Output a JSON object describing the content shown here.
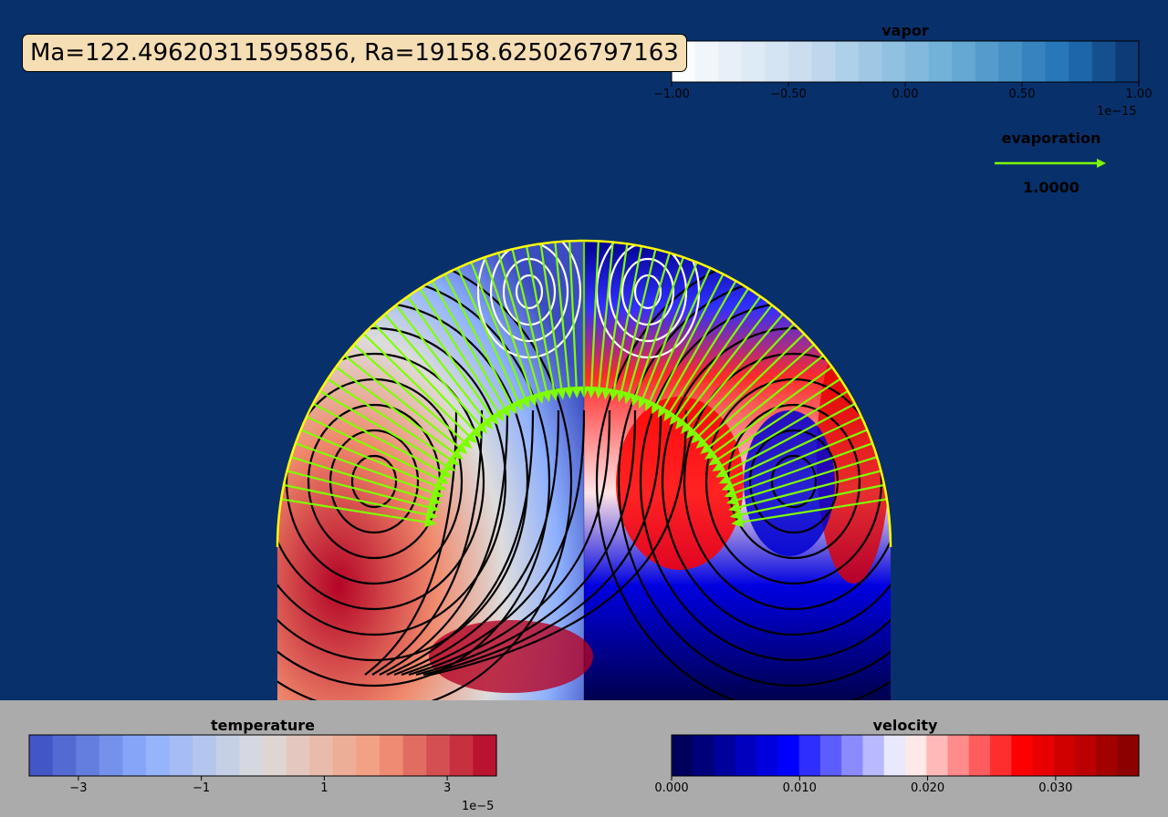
{
  "chart_data": {
    "type": "contour",
    "title": "Ma=122.49620311595856, Ra=19158.625026797163",
    "field_left": "temperature",
    "field_right": "velocity",
    "streamlines": true,
    "evaporation_arrows": true,
    "colorbars": {
      "vapor": {
        "title": "vapor",
        "range": [
          -1.0,
          1.0
        ],
        "ticks": [
          "−1.00",
          "−0.50",
          "0.00",
          "0.50",
          "1.00"
        ],
        "tick_values": [
          -1.0,
          -0.5,
          0.0,
          0.5,
          1.0
        ],
        "multiplier": "1e−15",
        "levels": 20,
        "colormap": "Blues"
      },
      "temperature": {
        "title": "temperature",
        "range": [
          -3.8,
          3.8
        ],
        "ticks": [
          "−3",
          "−1",
          "1",
          "3"
        ],
        "tick_values": [
          -3,
          -1,
          1,
          3
        ],
        "multiplier": "1e−5",
        "levels": 20,
        "colormap": "coolwarm"
      },
      "velocity": {
        "title": "velocity",
        "range": [
          0.0,
          0.0365
        ],
        "ticks": [
          "0.000",
          "0.010",
          "0.020",
          "0.030"
        ],
        "tick_values": [
          0.0,
          0.01,
          0.02,
          0.03
        ],
        "levels": 22,
        "colormap": "seismic"
      }
    },
    "legend": {
      "title": "evaporation",
      "value": "1.0000",
      "color": "#7fff00"
    },
    "colors": {
      "background": "#08306b",
      "bottom_panel": "#ababab",
      "title_box": "#f5deb3",
      "outline": "#ffff00",
      "arrow": "#7fff00"
    }
  }
}
